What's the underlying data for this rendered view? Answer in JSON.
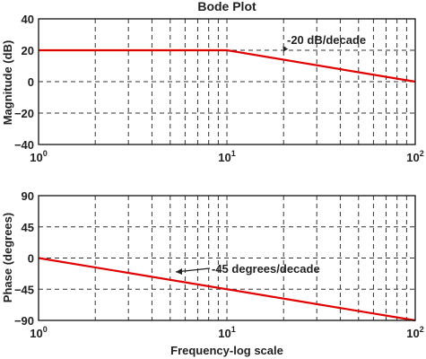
{
  "chart_data": [
    {
      "type": "line",
      "title": "Bode Plot",
      "xlabel": "",
      "ylabel": "Magnitude (dB)",
      "xscale": "log",
      "xlim": [
        1,
        100
      ],
      "ylim": [
        -40,
        40
      ],
      "x_ticks": [
        {
          "base": "10",
          "exp": "0",
          "value": 1
        },
        {
          "base": "10",
          "exp": "1",
          "value": 10
        },
        {
          "base": "10",
          "exp": "2",
          "value": 100
        }
      ],
      "y_ticks": [
        "40",
        "20",
        "0",
        "−20",
        "−40"
      ],
      "y_tick_values": [
        40,
        20,
        0,
        -20,
        -40
      ],
      "grid": true,
      "series": [
        {
          "x": [
            1,
            10,
            100
          ],
          "y": [
            20,
            20,
            0
          ]
        }
      ],
      "annotation": {
        "text": "-20 dB/decade",
        "x": 20,
        "y": 18
      }
    },
    {
      "type": "line",
      "title": "",
      "xlabel": "Frequency-log scale",
      "ylabel": "Phase (degrees)",
      "xscale": "log",
      "xlim": [
        1,
        100
      ],
      "ylim": [
        -90,
        90
      ],
      "x_ticks": [
        {
          "base": "10",
          "exp": "0",
          "value": 1
        },
        {
          "base": "10",
          "exp": "1",
          "value": 10
        },
        {
          "base": "10",
          "exp": "2",
          "value": 100
        }
      ],
      "y_ticks": [
        "90",
        "45",
        "0",
        "−45",
        "−90"
      ],
      "y_tick_values": [
        90,
        45,
        0,
        -45,
        -90
      ],
      "grid": true,
      "series": [
        {
          "x": [
            1,
            100
          ],
          "y": [
            0,
            -90
          ]
        }
      ],
      "annotation": {
        "text": "-45 degrees/decade",
        "x": 4.6,
        "y": -20,
        "arrow_to_x": 4.9,
        "arrow_to_y": -20
      }
    }
  ],
  "colors": {
    "series": "#e00000",
    "grid": "#333333",
    "text": "#222222"
  }
}
